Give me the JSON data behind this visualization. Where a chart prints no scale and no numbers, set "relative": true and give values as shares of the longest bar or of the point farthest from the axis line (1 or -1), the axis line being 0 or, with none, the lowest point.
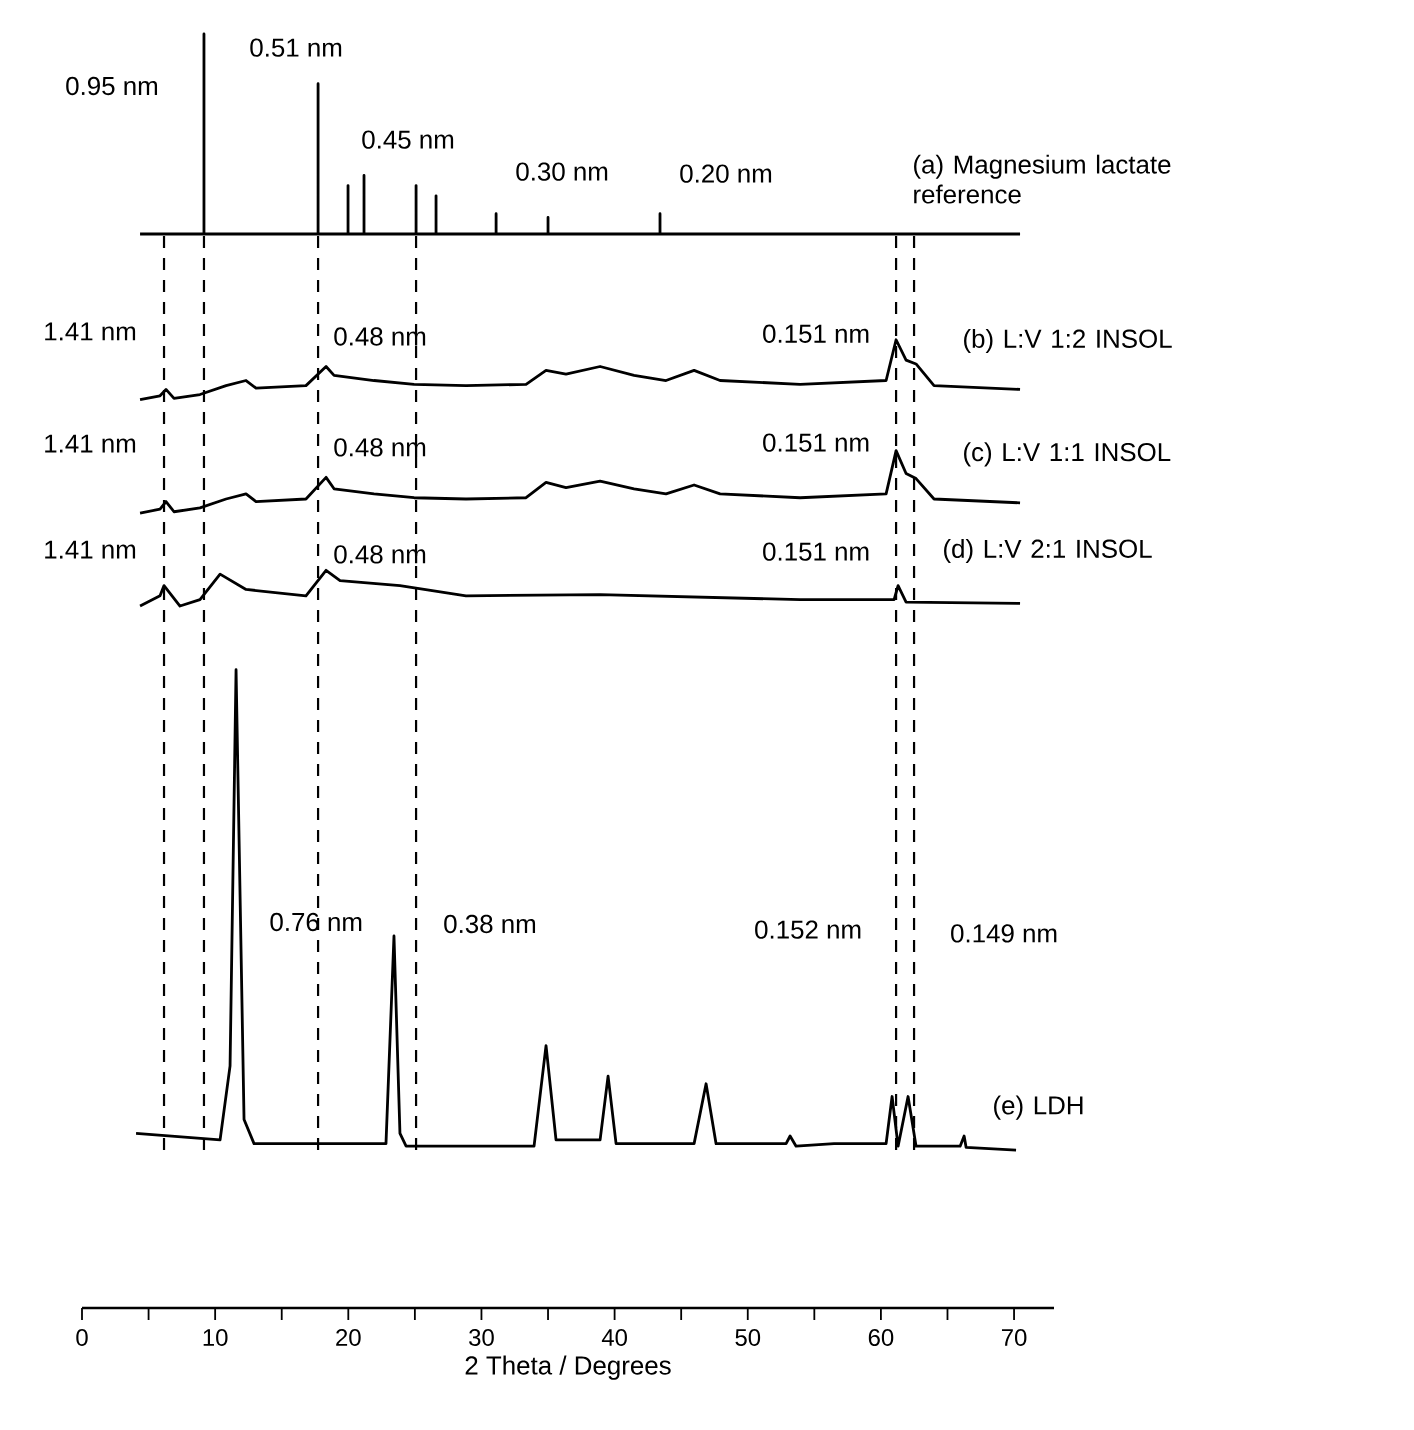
{
  "chart_data": {
    "type": "line",
    "relative": true,
    "xlabel": "2 Theta / Degrees",
    "xlim": [
      0,
      73
    ],
    "xticks": [
      0,
      {
        "value": 5,
        "label": null
      },
      10,
      {
        "value": 15,
        "label": null
      },
      20,
      {
        "value": 25,
        "label": null
      },
      30,
      {
        "value": 35,
        "label": null
      },
      40,
      {
        "value": 45,
        "label": null
      },
      50,
      {
        "value": 55,
        "label": null
      },
      60,
      {
        "value": 65,
        "label": null
      },
      70
    ],
    "marker": "none",
    "line_style": "solid",
    "legend": false,
    "grid": false,
    "series": [
      {
        "name": "(a) Magnesium lactate reference",
        "color": "#000000",
        "x": [
          4.36,
          9.16,
          9.16,
          9.16,
          17.73,
          17.73,
          17.73,
          19.98,
          19.98,
          19.98,
          21.18,
          21.18,
          21.18,
          25.09,
          25.09,
          25.09,
          26.59,
          26.59,
          26.59,
          31.1,
          31.1,
          31.1,
          35.0,
          35.0,
          35.0,
          43.41,
          43.41,
          43.41,
          70.45
        ],
        "values": [
          0.843,
          0.843,
          1,
          0.843,
          0.843,
          0.961,
          0.843,
          0.843,
          0.881,
          0.843,
          0.843,
          0.889,
          0.843,
          0.843,
          0.881,
          0.843,
          0.843,
          0.873,
          0.843,
          0.843,
          0.859,
          0.843,
          0.843,
          0.856,
          0.843,
          0.843,
          0.859,
          0.843,
          0.843
        ]
      },
      {
        "name": "(b) L:V 1:2 INSOL",
        "color": "#000000",
        "x": [
          4.36,
          5.86,
          6.31,
          6.91,
          8.86,
          10.82,
          12.32,
          13.07,
          16.82,
          18.33,
          18.93,
          21.93,
          24.94,
          28.84,
          33.35,
          34.85,
          36.35,
          38.91,
          41.46,
          43.86,
          45.97,
          47.92,
          53.93,
          60.39,
          61.14,
          61.89,
          62.64,
          63.99,
          70.45
        ],
        "values": [
          0.713,
          0.716,
          0.721,
          0.714,
          0.717,
          0.724,
          0.728,
          0.722,
          0.724,
          0.739,
          0.732,
          0.728,
          0.725,
          0.724,
          0.725,
          0.736,
          0.733,
          0.739,
          0.732,
          0.728,
          0.736,
          0.728,
          0.725,
          0.728,
          0.76,
          0.744,
          0.741,
          0.724,
          0.721
        ]
      },
      {
        "name": "(c) L:V 1:1 INSOL",
        "color": "#000000",
        "x": [
          4.36,
          5.86,
          6.31,
          6.91,
          8.86,
          10.82,
          12.32,
          13.07,
          16.82,
          18.33,
          18.93,
          21.93,
          24.94,
          28.84,
          33.35,
          34.85,
          36.35,
          38.91,
          41.46,
          43.86,
          45.97,
          47.92,
          53.93,
          60.39,
          61.14,
          61.89,
          62.64,
          63.99,
          70.45
        ],
        "values": [
          0.624,
          0.627,
          0.633,
          0.625,
          0.628,
          0.635,
          0.639,
          0.633,
          0.635,
          0.652,
          0.643,
          0.639,
          0.636,
          0.635,
          0.636,
          0.648,
          0.644,
          0.649,
          0.643,
          0.639,
          0.646,
          0.639,
          0.636,
          0.639,
          0.673,
          0.655,
          0.651,
          0.635,
          0.632
        ]
      },
      {
        "name": "(d) L:V 2:1 INSOL",
        "color": "#000000",
        "x": [
          4.36,
          5.86,
          6.16,
          7.36,
          8.86,
          10.37,
          12.32,
          16.82,
          18.33,
          19.38,
          23.88,
          28.84,
          38.91,
          53.93,
          60.99,
          61.29,
          61.89,
          70.45
        ],
        "values": [
          0.551,
          0.559,
          0.567,
          0.551,
          0.556,
          0.576,
          0.564,
          0.559,
          0.579,
          0.571,
          0.567,
          0.559,
          0.56,
          0.556,
          0.556,
          0.567,
          0.554,
          0.553
        ]
      },
      {
        "name": "(e) LDH",
        "color": "#000000",
        "x": [
          4.06,
          10.37,
          11.12,
          11.57,
          12.17,
          12.92,
          22.83,
          23.43,
          23.88,
          24.34,
          33.95,
          34.85,
          35.6,
          38.91,
          39.51,
          40.11,
          45.97,
          46.87,
          47.62,
          52.88,
          53.18,
          53.63,
          56.48,
          60.39,
          60.84,
          61.29,
          62.04,
          62.64,
          65.95,
          66.25,
          66.4,
          70.15
        ],
        "values": [
          0.137,
          0.132,
          0.19,
          0.501,
          0.148,
          0.129,
          0.129,
          0.292,
          0.137,
          0.127,
          0.127,
          0.206,
          0.132,
          0.132,
          0.182,
          0.129,
          0.129,
          0.176,
          0.129,
          0.129,
          0.135,
          0.127,
          0.129,
          0.129,
          0.166,
          0.127,
          0.166,
          0.127,
          0.127,
          0.135,
          0.126,
          0.124
        ]
      }
    ],
    "ref_lines": [
      {
        "axis": "x",
        "value": 6.16,
        "line_style": "dashed"
      },
      {
        "axis": "x",
        "value": 9.16,
        "line_style": "dashed"
      },
      {
        "axis": "x",
        "value": 17.73,
        "line_style": "dashed"
      },
      {
        "axis": "x",
        "value": 25.09,
        "line_style": "dashed"
      },
      {
        "axis": "x",
        "value": 61.14,
        "line_style": "dashed"
      },
      {
        "axis": "x",
        "value": 62.49,
        "line_style": "dashed"
      }
    ],
    "annotations": [
      {
        "text": "0.95 nm",
        "x": 9.16,
        "y": 1
      },
      {
        "text": "0.51 nm",
        "x": 17.73,
        "y": 0.961
      },
      {
        "text": "0.45 nm",
        "x": 19.98,
        "y": 0.881
      },
      {
        "text": "0.30 nm",
        "x": 31.1,
        "y": 0.859
      },
      {
        "text": "0.20 nm",
        "x": 43.41,
        "y": 0.859
      },
      {
        "text": "1.41 nm",
        "x": 6.31,
        "y": 0.721
      },
      {
        "text": "0.48 nm",
        "x": 18.33,
        "y": 0.739
      },
      {
        "text": "0.151 nm",
        "x": 61.14,
        "y": 0.76
      },
      {
        "text": "1.41 nm",
        "x": 6.31,
        "y": 0.633
      },
      {
        "text": "0.48 nm",
        "x": 18.33,
        "y": 0.652
      },
      {
        "text": "0.151 nm",
        "x": 61.14,
        "y": 0.673
      },
      {
        "text": "1.41 nm",
        "x": 6.16,
        "y": 0.567
      },
      {
        "text": "0.48 nm",
        "x": 18.33,
        "y": 0.579
      },
      {
        "text": "0.151 nm",
        "x": 61.29,
        "y": 0.567
      },
      {
        "text": "0.76 nm",
        "x": 11.28,
        "y": 0.303
      },
      {
        "text": "0.38 nm",
        "x": 23.43,
        "y": 0.292
      },
      {
        "text": "0.152 nm",
        "x": 61.14,
        "y": 0.297
      },
      {
        "text": "0.149 nm",
        "x": 62.49,
        "y": 0.294
      }
    ]
  }
}
